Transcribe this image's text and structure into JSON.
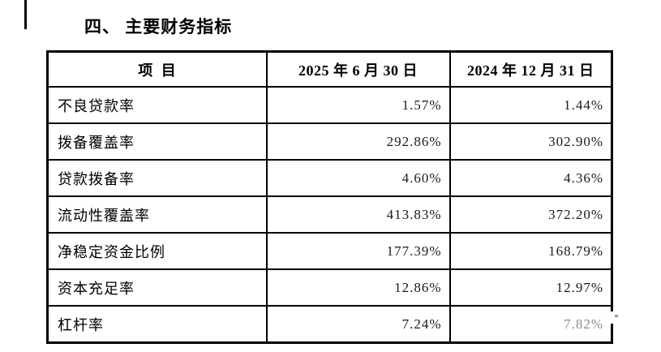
{
  "title": "四、 主要财务指标",
  "table": {
    "header": {
      "item": "项  目",
      "col_2025": "2025 年 6 月 30 日",
      "col_2024": "2024 年 12 月 31 日"
    },
    "rows": [
      {
        "label": "不良贷款率",
        "v2025": "1.57%",
        "v2024": "1.44%"
      },
      {
        "label": "拨备覆盖率",
        "v2025": "292.86%",
        "v2024": "302.90%"
      },
      {
        "label": "贷款拨备率",
        "v2025": "4.60%",
        "v2024": "4.36%"
      },
      {
        "label": "流动性覆盖率",
        "v2025": "413.83%",
        "v2024": "372.20%"
      },
      {
        "label": "净稳定资金比例",
        "v2025": "177.39%",
        "v2024": "168.79%"
      },
      {
        "label": "资本充足率",
        "v2025": "12.86%",
        "v2024": "12.97%"
      },
      {
        "label": "杠杆率",
        "v2025": "7.24%",
        "v2024": "7.82%"
      }
    ]
  },
  "colors": {
    "text": "#000000",
    "value_text": "#1a1a1a",
    "muted_value": "#8c8c8c",
    "border": "#000000",
    "background": "#ffffff"
  }
}
